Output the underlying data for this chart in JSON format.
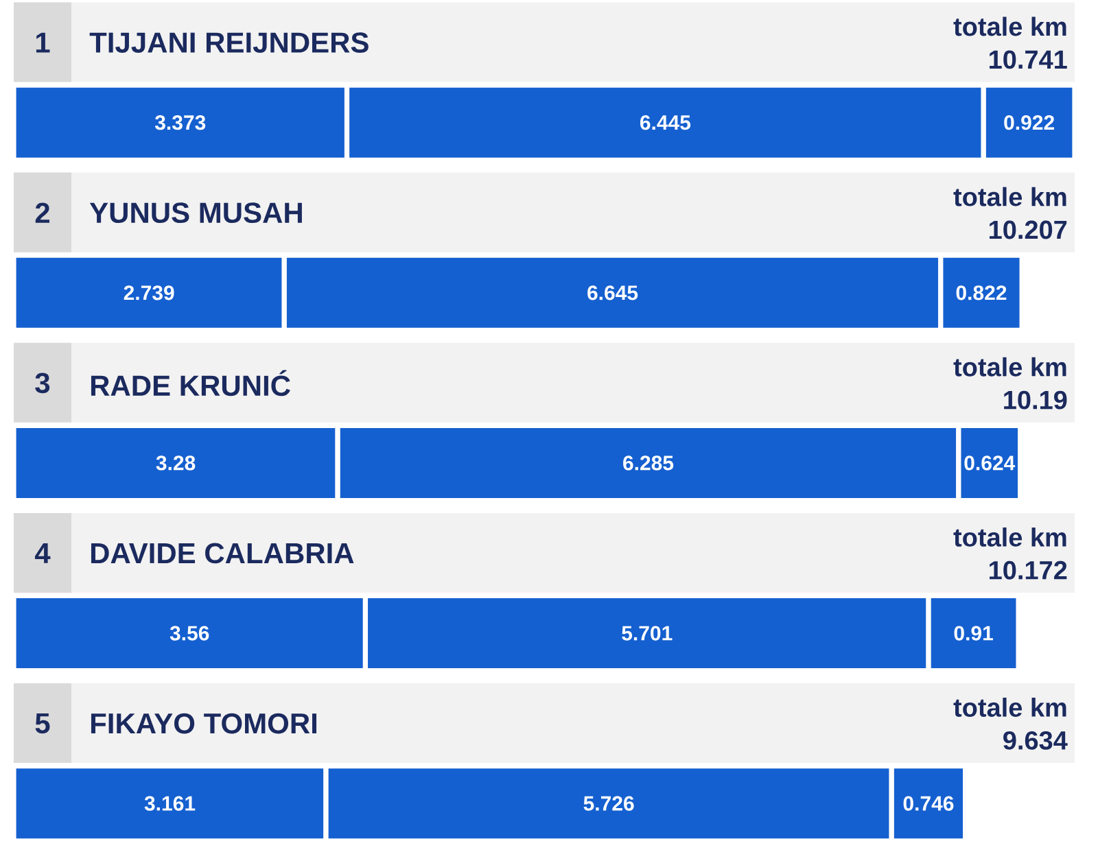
{
  "chart_data": {
    "type": "bar",
    "orientation": "horizontal",
    "stacked": true,
    "data_labels": true,
    "categories": [
      "TIJJANI REIJNDERS",
      "YUNUS MUSAH",
      "RADE KRUNIĆ",
      "DAVIDE CALABRIA",
      "FIKAYO TOMORI"
    ],
    "series": [
      {
        "color": "#1560d0",
        "values": [
          3.373,
          2.739,
          3.28,
          3.56,
          3.161
        ]
      },
      {
        "color": "#1560d0",
        "values": [
          6.445,
          6.645,
          6.285,
          5.701,
          5.726
        ]
      },
      {
        "color": "#1560d0",
        "values": [
          0.922,
          0.822,
          0.624,
          0.91,
          0.746
        ]
      }
    ],
    "totals": [
      "10.741",
      "10.207",
      "10.19",
      "10.172",
      "9.634"
    ],
    "annotations": [
      "1",
      "totale km",
      "2",
      "totale km",
      "3",
      "totale km",
      "4",
      "totale km",
      "5",
      "totale km"
    ]
  }
}
